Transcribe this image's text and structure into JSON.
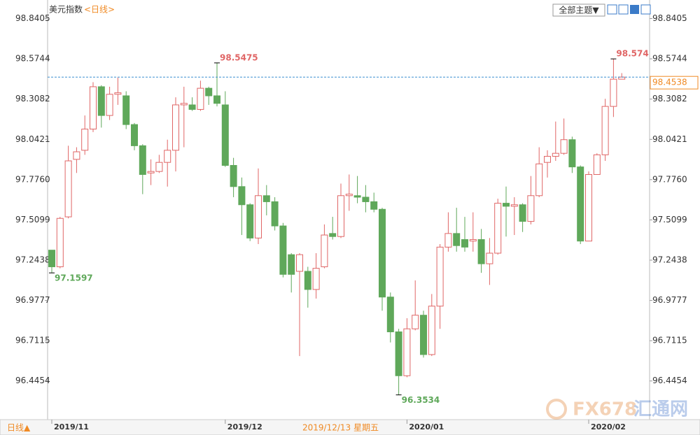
{
  "chart_data": {
    "type": "candlestick",
    "title": "美元指数",
    "subtitle": "<日线>",
    "categories": [
      "2019/11",
      null,
      null,
      null,
      null,
      null,
      null,
      null,
      null,
      null,
      null,
      null,
      null,
      null,
      null,
      null,
      null,
      null,
      null,
      null,
      null,
      "2019/12",
      null,
      null,
      null,
      null,
      null,
      null,
      null,
      null,
      null,
      null,
      null,
      null,
      null,
      null,
      null,
      null,
      null,
      null,
      null,
      null,
      null,
      "2020/01",
      null,
      null,
      null,
      null,
      null,
      null,
      null,
      null,
      null,
      null,
      null,
      null,
      null,
      null,
      null,
      null,
      null,
      null,
      null,
      null,
      null,
      "2020/02",
      null,
      null,
      null,
      null
    ],
    "open": [
      97.31,
      97.2,
      97.53,
      97.91,
      97.97,
      98.11,
      98.39,
      98.2,
      98.34,
      98.33,
      98.14,
      98.0,
      97.82,
      97.83,
      97.89,
      97.97,
      98.27,
      98.27,
      98.24,
      98.38,
      98.33,
      98.27,
      97.87,
      97.73,
      97.61,
      97.39,
      97.67,
      97.63,
      97.47,
      97.28,
      97.17,
      97.17,
      97.05,
      97.2,
      97.42,
      97.4,
      97.67,
      97.67,
      97.66,
      97.63,
      97.58,
      97.0,
      96.77,
      96.48,
      96.79,
      96.88,
      96.62,
      96.94,
      97.33,
      97.42,
      97.38,
      97.37,
      97.38,
      97.22,
      97.29,
      97.62,
      97.6,
      97.61,
      97.5,
      97.67,
      97.89,
      97.93,
      97.95,
      98.04,
      97.86,
      97.37,
      97.81,
      97.94,
      98.26,
      98.44
    ],
    "high": [
      97.31,
      97.53,
      98.0,
      97.99,
      98.2,
      98.42,
      98.4,
      98.39,
      98.45,
      98.36,
      98.15,
      98.01,
      97.91,
      97.94,
      98.04,
      98.32,
      98.39,
      98.32,
      98.43,
      98.39,
      98.5475,
      98.36,
      97.92,
      97.79,
      97.62,
      97.85,
      97.74,
      97.66,
      97.49,
      97.29,
      97.29,
      97.2,
      97.29,
      97.48,
      97.53,
      97.75,
      97.81,
      97.8,
      97.74,
      97.69,
      97.59,
      97.03,
      96.79,
      96.86,
      97.11,
      96.91,
      97.02,
      97.35,
      97.56,
      97.59,
      97.53,
      97.56,
      97.45,
      97.39,
      97.65,
      97.73,
      97.66,
      97.62,
      97.8,
      97.99,
      97.97,
      98.16,
      98.18,
      98.06,
      97.87,
      97.83,
      97.95,
      98.31,
      98.574,
      98.48
    ],
    "low": [
      97.1597,
      97.19,
      97.52,
      97.82,
      97.94,
      98.09,
      98.12,
      98.17,
      98.27,
      98.11,
      97.97,
      97.68,
      97.74,
      97.82,
      97.73,
      97.83,
      97.99,
      98.23,
      98.23,
      98.27,
      98.26,
      97.86,
      97.66,
      97.41,
      97.37,
      97.35,
      97.54,
      97.44,
      97.13,
      97.03,
      96.61,
      96.93,
      96.99,
      97.19,
      97.38,
      97.39,
      97.57,
      97.62,
      97.56,
      97.56,
      96.91,
      96.7,
      96.3534,
      96.47,
      96.78,
      96.6,
      96.61,
      96.79,
      97.3,
      97.3,
      97.3,
      97.3,
      97.16,
      97.08,
      97.28,
      97.4,
      97.41,
      97.43,
      97.48,
      97.66,
      97.79,
      97.9,
      97.94,
      97.82,
      97.35,
      97.37,
      97.81,
      97.9,
      98.19,
      98.44
    ],
    "close": [
      97.2,
      97.52,
      97.9,
      97.96,
      98.11,
      98.39,
      98.2,
      98.34,
      98.35,
      98.14,
      98.0,
      97.81,
      97.83,
      97.89,
      97.97,
      98.27,
      98.28,
      98.24,
      98.38,
      98.33,
      98.28,
      97.87,
      97.73,
      97.61,
      97.39,
      97.67,
      97.63,
      97.47,
      97.15,
      97.15,
      97.28,
      97.05,
      97.19,
      97.41,
      97.4,
      97.67,
      97.68,
      97.66,
      97.63,
      97.58,
      97.0,
      96.77,
      96.48,
      96.79,
      96.88,
      96.62,
      96.94,
      97.33,
      97.42,
      97.34,
      97.33,
      97.38,
      97.22,
      97.29,
      97.62,
      97.6,
      97.61,
      97.5,
      97.67,
      97.88,
      97.93,
      97.95,
      98.04,
      97.86,
      97.37,
      97.81,
      97.94,
      98.26,
      98.44,
      98.4538
    ],
    "up_color": "#e06666",
    "down_color": "#5fa85a",
    "ylim": [
      96.19,
      98.94
    ],
    "yticks": [
      96.4454,
      96.7115,
      96.9777,
      97.2438,
      97.5099,
      {
        "value": 97.776,
        "label": "97.7760"
      },
      98.0421,
      98.3082,
      98.5744,
      98.8405
    ]
  },
  "ui": {
    "theme_button": "全部主题▼",
    "period_button": "日线▲",
    "crosshair_date": "2019/12/13 星期五",
    "watermark": "FX678",
    "watermark_cn": "汇通网"
  }
}
